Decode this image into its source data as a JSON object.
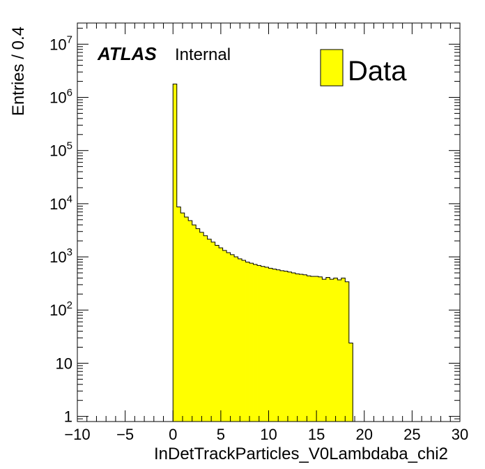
{
  "chart_data": {
    "type": "bar",
    "title": "",
    "xlabel": "InDetTrackParticles_V0Lambdaba_chi2",
    "ylabel": "Entries / 0.4",
    "xlim": [
      -10,
      30
    ],
    "ylim": [
      0.8,
      25000000
    ],
    "y_scale": "log",
    "grid": false,
    "legend_position": "top-right",
    "bin_width": 0.4,
    "x_ticks": [
      -10,
      -5,
      0,
      5,
      10,
      15,
      20,
      25,
      30
    ],
    "x_tick_labels": [
      "−10",
      "−5",
      "0",
      "5",
      "10",
      "15",
      "20",
      "25",
      "30"
    ],
    "y_ticks": [
      {
        "value": 1,
        "base": "1",
        "exp": ""
      },
      {
        "value": 10,
        "base": "10",
        "exp": ""
      },
      {
        "value": 100,
        "base": "10",
        "exp": "2"
      },
      {
        "value": 1000,
        "base": "10",
        "exp": "3"
      },
      {
        "value": 10000,
        "base": "10",
        "exp": "4"
      },
      {
        "value": 100000,
        "base": "10",
        "exp": "5"
      },
      {
        "value": 1000000,
        "base": "10",
        "exp": "6"
      },
      {
        "value": 10000000,
        "base": "10",
        "exp": "7"
      }
    ],
    "bin_lows": [
      0.0,
      0.4,
      0.8,
      1.2,
      1.6,
      2.0,
      2.4,
      2.8,
      3.2,
      3.6,
      4.0,
      4.4,
      4.8,
      5.2,
      5.6,
      6.0,
      6.4,
      6.8,
      7.2,
      7.6,
      8.0,
      8.4,
      8.8,
      9.2,
      9.6,
      10.0,
      10.4,
      10.8,
      11.2,
      11.6,
      12.0,
      12.4,
      12.8,
      13.2,
      13.6,
      14.0,
      14.4,
      14.8,
      15.2,
      15.6,
      16.0,
      16.4,
      16.8,
      17.2,
      17.6,
      18.0,
      18.4
    ],
    "series": [
      {
        "name": "Data",
        "color": "#ffff00",
        "values": [
          1780000,
          8700,
          6700,
          5600,
          4800,
          4000,
          3400,
          2900,
          2500,
          2150,
          1900,
          1650,
          1480,
          1320,
          1200,
          1100,
          1000,
          920,
          860,
          800,
          760,
          720,
          690,
          660,
          640,
          610,
          590,
          570,
          550,
          540,
          520,
          500,
          480,
          470,
          460,
          440,
          430,
          430,
          420,
          380,
          410,
          380,
          400,
          370,
          400,
          340,
          24
        ]
      }
    ],
    "annotations": {
      "experiment": "ATLAS",
      "status": "Internal"
    }
  }
}
